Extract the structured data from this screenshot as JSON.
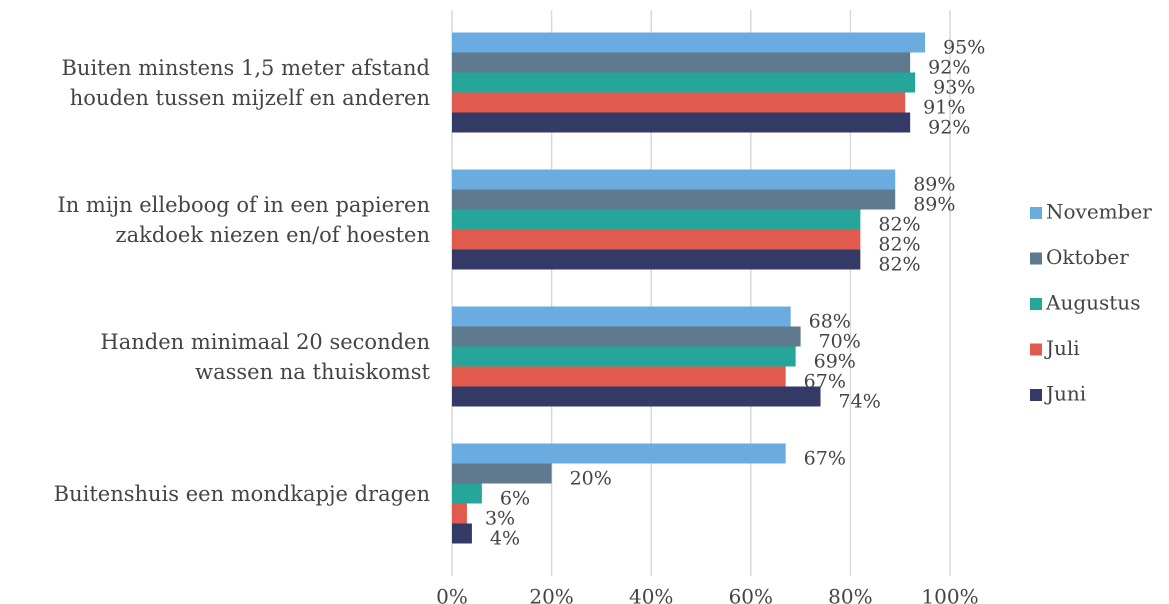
{
  "chart_data": {
    "type": "bar",
    "orientation": "horizontal",
    "categories": [
      "Buiten minstens 1,5 meter afstand\nhouden tussen mijzelf en anderen",
      "In mijn elleboog of in een papieren\nzakdoek niezen en/of hoesten",
      "Handen minimaal 20 seconden\nwassen na thuiskomst",
      "Buitenshuis een mondkapje dragen"
    ],
    "series": [
      {
        "name": "November",
        "color": "#6aace0",
        "values": [
          95,
          89,
          68,
          67
        ],
        "value_labels": [
          "95%",
          "89%",
          "68%",
          "67%"
        ]
      },
      {
        "name": "Oktober",
        "color": "#5f7a8e",
        "values": [
          92,
          89,
          70,
          20
        ],
        "value_labels": [
          "92%",
          "89%",
          "70%",
          "20%"
        ]
      },
      {
        "name": "Augustus",
        "color": "#26a69a",
        "values": [
          93,
          82,
          69,
          6
        ],
        "value_labels": [
          "93%",
          "82%",
          "69%",
          "6%"
        ]
      },
      {
        "name": "Juli",
        "color": "#e05a4e",
        "values": [
          91,
          82,
          67,
          3
        ],
        "value_labels": [
          "91%",
          "82%",
          "67%",
          "3%"
        ]
      },
      {
        "name": "Juni",
        "color": "#343a66",
        "values": [
          92,
          82,
          74,
          4
        ],
        "value_labels": [
          "92%",
          "82%",
          "74%",
          "4%"
        ]
      }
    ],
    "xlim": [
      0,
      100
    ],
    "xticks": [
      {
        "value": 0,
        "label": "0%"
      },
      {
        "value": 20,
        "label": "20%"
      },
      {
        "value": 40,
        "label": "40%"
      },
      {
        "value": 60,
        "label": "60%"
      },
      {
        "value": 80,
        "label": "80%"
      },
      {
        "value": 100,
        "label": "100%"
      }
    ],
    "grid": true,
    "legend": "right"
  }
}
